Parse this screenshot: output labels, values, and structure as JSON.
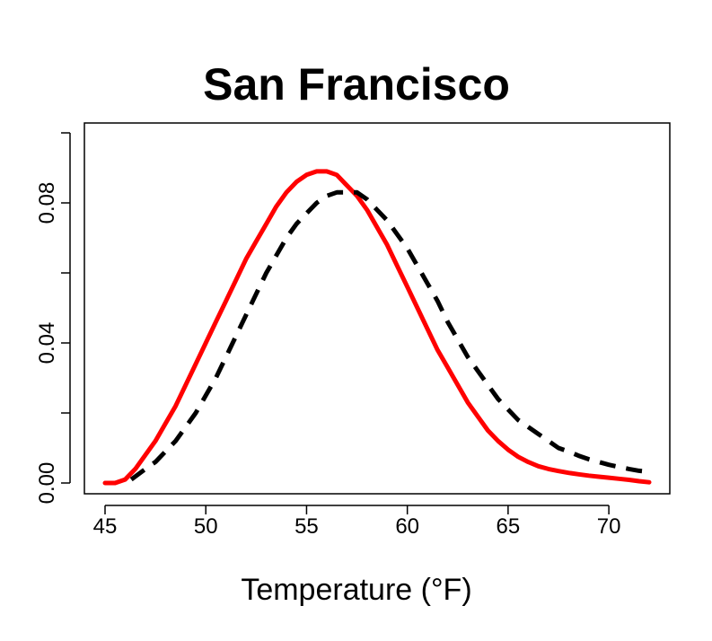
{
  "chart_data": {
    "type": "line",
    "title": "San Francisco",
    "xlabel": "Temperature (°F)",
    "ylabel": "",
    "xlim": [
      45,
      72
    ],
    "ylim": [
      0,
      0.1
    ],
    "x_ticks": [
      "45",
      "50",
      "55",
      "60",
      "65",
      "70"
    ],
    "y_ticks": [
      "0.00",
      "0.04",
      "0.08"
    ],
    "y_minor_ticks": [
      0.02,
      0.06,
      0.1
    ],
    "grid": false,
    "legend": "none",
    "series": [
      {
        "color": "#ff0000",
        "line_style": "solid",
        "x": [
          45,
          45.5,
          46,
          46.5,
          47,
          47.5,
          48,
          48.5,
          49,
          49.5,
          50,
          50.5,
          51,
          51.5,
          52,
          52.5,
          53,
          53.5,
          54,
          54.5,
          55,
          55.5,
          56,
          56.5,
          57,
          57.5,
          58,
          58.5,
          59,
          59.5,
          60,
          60.5,
          61,
          61.5,
          62,
          62.5,
          63,
          63.5,
          64,
          64.5,
          65,
          65.5,
          66,
          66.5,
          67,
          67.5,
          68,
          68.5,
          69,
          69.5,
          70,
          70.5,
          71,
          71.5,
          72
        ],
        "y": [
          0.0,
          0.0,
          0.001,
          0.004,
          0.008,
          0.012,
          0.017,
          0.022,
          0.028,
          0.034,
          0.04,
          0.046,
          0.052,
          0.058,
          0.064,
          0.069,
          0.074,
          0.079,
          0.083,
          0.086,
          0.088,
          0.089,
          0.089,
          0.088,
          0.085,
          0.082,
          0.078,
          0.073,
          0.068,
          0.062,
          0.056,
          0.05,
          0.044,
          0.038,
          0.033,
          0.028,
          0.023,
          0.019,
          0.015,
          0.012,
          0.0095,
          0.0075,
          0.006,
          0.0048,
          0.004,
          0.0034,
          0.0029,
          0.0025,
          0.0021,
          0.0018,
          0.0015,
          0.0012,
          0.0009,
          0.0005,
          0.0002
        ]
      },
      {
        "color": "#000000",
        "line_style": "dashed",
        "x": [
          46.3,
          47,
          47.5,
          48,
          48.5,
          49,
          49.5,
          50,
          50.5,
          51,
          51.5,
          52,
          52.5,
          53,
          53.5,
          54,
          54.5,
          55,
          55.5,
          56,
          56.5,
          57,
          57.5,
          58,
          58.5,
          59,
          59.5,
          60,
          60.5,
          61,
          61.5,
          62,
          62.5,
          63,
          63.5,
          64,
          64.5,
          65,
          65.5,
          66,
          66.5,
          67,
          67.5,
          68,
          68.5,
          69,
          69.5,
          70,
          70.5,
          71,
          71.5,
          72
        ],
        "y": [
          0.001,
          0.004,
          0.006,
          0.009,
          0.012,
          0.016,
          0.02,
          0.025,
          0.03,
          0.036,
          0.042,
          0.048,
          0.054,
          0.06,
          0.065,
          0.07,
          0.074,
          0.077,
          0.08,
          0.082,
          0.083,
          0.083,
          0.083,
          0.081,
          0.078,
          0.075,
          0.071,
          0.067,
          0.062,
          0.057,
          0.052,
          0.046,
          0.041,
          0.036,
          0.032,
          0.028,
          0.024,
          0.021,
          0.018,
          0.016,
          0.014,
          0.012,
          0.01,
          0.009,
          0.0078,
          0.0068,
          0.006,
          0.0052,
          0.0046,
          0.004,
          0.0035,
          0.0032
        ]
      }
    ]
  }
}
